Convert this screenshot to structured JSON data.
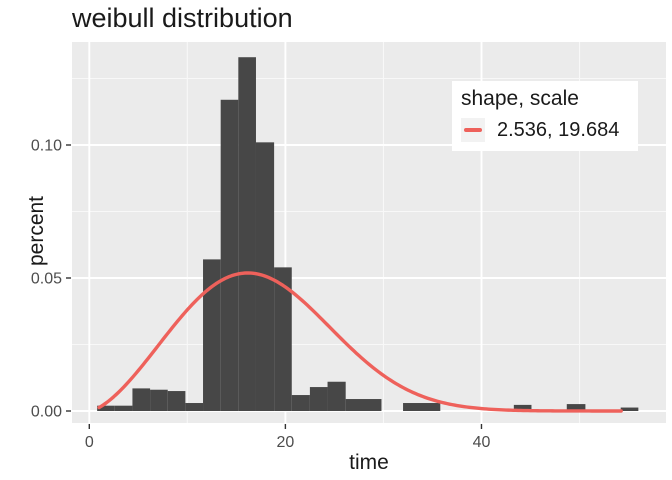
{
  "title": "weibull distribution",
  "legend": {
    "title": "shape, scale",
    "entries": [
      {
        "label": "2.536, 19.684",
        "key_color": "#EE615B"
      }
    ]
  },
  "colors": {
    "panel_bg": "#EBEBEB",
    "grid_major": "#FFFFFF",
    "grid_minor": "#FFFFFF",
    "bar_fill": "#474747",
    "curve_red": "#EE615B",
    "tick_label": "#4D4D4D",
    "tick_mark": "#333333",
    "legend_key_bg": "#F2F2F2"
  },
  "chart_data": {
    "type": "histogram+line",
    "title": "weibull distribution",
    "xlabel": "time",
    "ylabel": "percent",
    "xlim": [
      -1.764,
      58.82
    ],
    "ylim": [
      -0.00451,
      0.13872
    ],
    "grid": "on",
    "legend_position": "inside-top-right",
    "x_ticks": [
      {
        "v": 0,
        "label": "0"
      },
      {
        "v": 20,
        "label": "20"
      },
      {
        "v": 40,
        "label": "40"
      }
    ],
    "x_minor_ticks": [
      10,
      30,
      50
    ],
    "y_ticks": [
      {
        "v": 0.0,
        "label": "0.00"
      },
      {
        "v": 0.05,
        "label": "0.05"
      },
      {
        "v": 0.1,
        "label": "0.10"
      }
    ],
    "y_minor_ticks": [
      0.025,
      0.075,
      0.125
    ],
    "bars": [
      {
        "x0": 0.8,
        "x1": 2.6,
        "h": 0.002
      },
      {
        "x0": 2.6,
        "x1": 4.4,
        "h": 0.002
      },
      {
        "x0": 4.4,
        "x1": 6.2,
        "h": 0.0085
      },
      {
        "x0": 6.2,
        "x1": 8.0,
        "h": 0.008
      },
      {
        "x0": 8.0,
        "x1": 9.8,
        "h": 0.0075
      },
      {
        "x0": 9.8,
        "x1": 11.6,
        "h": 0.003
      },
      {
        "x0": 11.6,
        "x1": 13.4,
        "h": 0.057
      },
      {
        "x0": 13.4,
        "x1": 15.2,
        "h": 0.117
      },
      {
        "x0": 15.2,
        "x1": 17.0,
        "h": 0.133
      },
      {
        "x0": 17.0,
        "x1": 18.85,
        "h": 0.101
      },
      {
        "x0": 18.85,
        "x1": 20.65,
        "h": 0.054
      },
      {
        "x0": 20.65,
        "x1": 22.5,
        "h": 0.006
      },
      {
        "x0": 22.5,
        "x1": 24.3,
        "h": 0.009
      },
      {
        "x0": 24.3,
        "x1": 26.15,
        "h": 0.011
      },
      {
        "x0": 26.15,
        "x1": 29.8,
        "h": 0.0045
      },
      {
        "x0": 32.0,
        "x1": 35.8,
        "h": 0.003
      },
      {
        "x0": 43.3,
        "x1": 45.1,
        "h": 0.0023
      },
      {
        "x0": 48.7,
        "x1": 50.6,
        "h": 0.0026
      },
      {
        "x0": 54.2,
        "x1": 56.0,
        "h": 0.0013
      }
    ],
    "curve": {
      "distribution": "weibull_pdf",
      "shape": 2.536,
      "scale": 19.684,
      "x_from": 1.0,
      "x_to": 54.3,
      "stroke_width": 3.4
    }
  }
}
